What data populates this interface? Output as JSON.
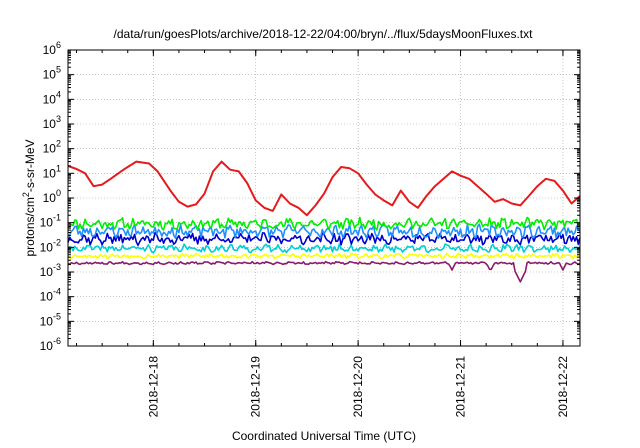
{
  "chart_data": {
    "type": "line",
    "title": "/data/run/goesPlots/archive/2018-12-22/04:00/bryn/../flux/5daysMoonFluxes.txt",
    "xlabel": "Coordinated Universal Time (UTC)",
    "ylabel": {
      "prefix": "protons/cm",
      "sup": "2",
      "suffix": "-s-sr-MeV"
    },
    "xlim": [
      "2018-12-17 04:00",
      "2018-12-22 04:00"
    ],
    "ylim": [
      1e-06,
      1000000.0
    ],
    "yscale": "log",
    "grid": true,
    "legend": "none",
    "x_ticks": [
      "2018-12-18",
      "2018-12-19",
      "2018-12-20",
      "2018-12-21",
      "2018-12-22"
    ],
    "y_ticks": [
      {
        "base": "10",
        "exp": "6"
      },
      {
        "base": "10",
        "exp": "5"
      },
      {
        "base": "10",
        "exp": "4"
      },
      {
        "base": "10",
        "exp": "3"
      },
      {
        "base": "10",
        "exp": "2"
      },
      {
        "base": "10",
        "exp": "1"
      },
      {
        "base": "10",
        "exp": "0"
      },
      {
        "base": "10",
        "exp": "-1"
      },
      {
        "base": "10",
        "exp": "-2"
      },
      {
        "base": "10",
        "exp": "-3"
      },
      {
        "base": "10",
        "exp": "-4"
      },
      {
        "base": "10",
        "exp": "-5"
      },
      {
        "base": "10",
        "exp": "-6"
      }
    ],
    "series": [
      {
        "color": "#e41a1c",
        "x": [
          "2018-12-17 04:00",
          "2018-12-17 06:00",
          "2018-12-17 08:00",
          "2018-12-17 10:00",
          "2018-12-17 12:00",
          "2018-12-17 14:00",
          "2018-12-17 17:00",
          "2018-12-17 20:00",
          "2018-12-17 23:00",
          "2018-12-18 01:00",
          "2018-12-18 04:00",
          "2018-12-18 06:00",
          "2018-12-18 08:00",
          "2018-12-18 10:00",
          "2018-12-18 12:00",
          "2018-12-18 14:00",
          "2018-12-18 16:00",
          "2018-12-18 18:00",
          "2018-12-18 20:00",
          "2018-12-18 22:00",
          "2018-12-19 00:00",
          "2018-12-19 02:00",
          "2018-12-19 04:00",
          "2018-12-19 06:00",
          "2018-12-19 08:00",
          "2018-12-19 10:00",
          "2018-12-19 12:00",
          "2018-12-19 14:00",
          "2018-12-19 16:00",
          "2018-12-19 18:00",
          "2018-12-19 20:00",
          "2018-12-19 22:00",
          "2018-12-20 00:00",
          "2018-12-20 02:00",
          "2018-12-20 04:00",
          "2018-12-20 06:00",
          "2018-12-20 08:00",
          "2018-12-20 10:00",
          "2018-12-20 12:00",
          "2018-12-20 14:00",
          "2018-12-20 16:00",
          "2018-12-20 18:00",
          "2018-12-20 20:00",
          "2018-12-20 22:00",
          "2018-12-21 00:00",
          "2018-12-21 02:00",
          "2018-12-21 04:00",
          "2018-12-21 06:00",
          "2018-12-21 08:00",
          "2018-12-21 10:00",
          "2018-12-21 12:00",
          "2018-12-21 14:00",
          "2018-12-21 16:00",
          "2018-12-21 18:00",
          "2018-12-21 20:00",
          "2018-12-21 22:00",
          "2018-12-22 00:00",
          "2018-12-22 02:00",
          "2018-12-22 04:00"
        ],
        "y": [
          20,
          15,
          10,
          3,
          3.5,
          6,
          14,
          30,
          25,
          12,
          2,
          0.7,
          0.45,
          0.55,
          1.5,
          12,
          30,
          14,
          12,
          4,
          0.8,
          0.4,
          0.3,
          1.4,
          0.6,
          0.4,
          0.2,
          0.5,
          1.5,
          7,
          18,
          16,
          10,
          3.5,
          1.4,
          0.8,
          0.5,
          2,
          0.7,
          0.4,
          1.2,
          3,
          6,
          12,
          8,
          6,
          3,
          1.5,
          0.7,
          0.9,
          0.6,
          0.5,
          1.2,
          3,
          6,
          5,
          2,
          0.6,
          1.2
        ]
      },
      {
        "color": "#00ee00",
        "base": 0.09,
        "amp": 0.35,
        "seed": 11
      },
      {
        "color": "#1e90ff",
        "base": 0.045,
        "amp": 0.4,
        "seed": 23
      },
      {
        "color": "#0000cd",
        "base": 0.022,
        "amp": 0.35,
        "seed": 37
      },
      {
        "color": "#00ced1",
        "base": 0.009,
        "amp": 0.25,
        "seed": 41
      },
      {
        "color": "#ffff00",
        "base": 0.0045,
        "amp": 0.15,
        "seed": 53
      },
      {
        "color": "#8b1a6b",
        "base": 0.0023,
        "amp": 0.08,
        "seed": 67,
        "dips": [
          {
            "x": "2018-12-20 22:00",
            "y": 0.0012
          },
          {
            "x": "2018-12-21 07:00",
            "y": 0.0011
          },
          {
            "x": "2018-12-21 14:00",
            "y": 0.0004
          },
          {
            "x": "2018-12-22 00:00",
            "y": 0.0012
          }
        ]
      }
    ]
  }
}
